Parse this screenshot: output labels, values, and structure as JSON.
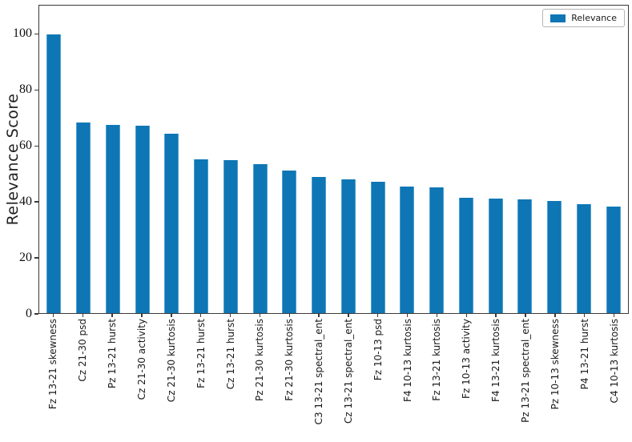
{
  "chart_data": {
    "type": "bar",
    "title": "",
    "xlabel": "",
    "ylabel": "Relevance Score",
    "series_name": "Relevance",
    "legend_position": "upper right",
    "grid": false,
    "ylim": [
      0,
      110.4
    ],
    "yticks": [
      0,
      20,
      40,
      60,
      80,
      100
    ],
    "bar_color": "#0e76b4",
    "bar_edge_color": "#4d9fce",
    "spine_color": "#3a3a3a",
    "categories": [
      "Fz 13-21 skewness",
      "Cz 21-30 psd",
      "Pz 13-21 hurst",
      "Cz 21-30 activity",
      "Cz 21-30 kurtosis",
      "Fz 13-21 hurst",
      "Cz 13-21 hurst",
      "Pz 21-30 kurtosis",
      "Fz 21-30 kurtosis",
      "C3 13-21 spectral_ent",
      "Cz 13-21 spectral_ent",
      "Fz 10-13 psd",
      "F4 10-13 kurtosis",
      "Fz 13-21 kurtosis",
      "Fz 10-13 activity",
      "F4 13-21 kurtosis",
      "Pz 13-21 spectral_ent",
      "Pz 10-13 skewness",
      "P4 13-21 hurst",
      "C4 10-13 kurtosis"
    ],
    "values": [
      100,
      68.5,
      67.5,
      67.2,
      64.5,
      55.3,
      54.8,
      53.5,
      51.3,
      49.0,
      48.0,
      47.2,
      45.5,
      45.0,
      41.5,
      41.2,
      40.7,
      40.3,
      39.2,
      38.3
    ]
  }
}
